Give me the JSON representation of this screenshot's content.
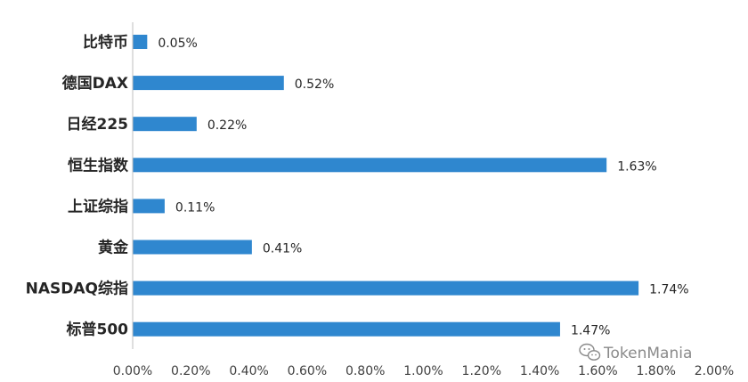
{
  "chart_data": {
    "type": "bar",
    "orientation": "horizontal",
    "categories": [
      "比特币",
      "德国DAX",
      "日经225",
      "恒生指数",
      "上证综指",
      "黄金",
      "NASDAQ综指",
      "标普500"
    ],
    "values": [
      0.05,
      0.52,
      0.22,
      1.63,
      0.11,
      0.41,
      1.74,
      1.47
    ],
    "data_labels": [
      "0.05%",
      "0.52%",
      "0.22%",
      "1.63%",
      "0.11%",
      "0.41%",
      "1.74%",
      "1.47%"
    ],
    "x_ticks": [
      "0.00%",
      "0.20%",
      "0.40%",
      "0.60%",
      "0.80%",
      "1.00%",
      "1.20%",
      "1.40%",
      "1.60%",
      "1.80%",
      "2.00%"
    ],
    "xlim": [
      0,
      2.0
    ],
    "title": "",
    "xlabel": "",
    "ylabel": "",
    "grid": false,
    "legend": "none",
    "bar_color": "#2F87CF"
  },
  "watermark": {
    "text": "TokenMania",
    "icon": "wechat-icon",
    "color": "#8a8a8a"
  }
}
